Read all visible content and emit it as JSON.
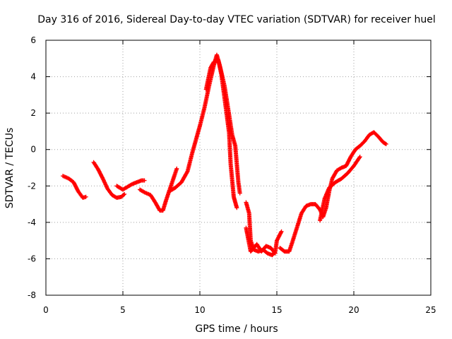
{
  "chart_data": {
    "type": "scatter",
    "title": "Day 316 of 2016, Sidereal Day-to-day VTEC variation (SDTVAR) for receiver huel",
    "xlabel": "GPS time / hours",
    "ylabel": "SDTVAR / TECUs",
    "xlim": [
      0,
      25
    ],
    "ylim": [
      -8,
      6
    ],
    "x_ticks": [
      0,
      5,
      10,
      15,
      20,
      25
    ],
    "x_tick_labels": [
      "0",
      "5",
      "10",
      "15",
      "20",
      "25"
    ],
    "y_ticks": [
      -8,
      -6,
      -4,
      -2,
      0,
      2,
      4,
      6
    ],
    "y_tick_labels": [
      "-8",
      "-6",
      "-4",
      "-2",
      "0",
      "2",
      "4",
      "6"
    ],
    "grid": true,
    "marker": "+",
    "color": "#ff0000",
    "series": [
      {
        "name": "SDTVAR",
        "segments": [
          [
            [
              1.1,
              -1.45
            ],
            [
              1.5,
              -1.6
            ],
            [
              1.8,
              -1.8
            ],
            [
              2.1,
              -2.3
            ],
            [
              2.4,
              -2.65
            ],
            [
              2.6,
              -2.6
            ]
          ],
          [
            [
              3.1,
              -0.7
            ],
            [
              3.4,
              -1.1
            ],
            [
              3.7,
              -1.6
            ],
            [
              4.0,
              -2.15
            ],
            [
              4.3,
              -2.5
            ],
            [
              4.6,
              -2.65
            ],
            [
              4.9,
              -2.6
            ],
            [
              5.1,
              -2.45
            ]
          ],
          [
            [
              4.6,
              -2.0
            ],
            [
              5.0,
              -2.2
            ],
            [
              5.3,
              -2.05
            ],
            [
              5.6,
              -1.9
            ],
            [
              5.9,
              -1.8
            ],
            [
              6.2,
              -1.7
            ],
            [
              6.4,
              -1.7
            ]
          ],
          [
            [
              6.1,
              -2.2
            ],
            [
              6.4,
              -2.35
            ],
            [
              6.8,
              -2.5
            ],
            [
              7.1,
              -2.9
            ],
            [
              7.4,
              -3.35
            ],
            [
              7.6,
              -3.35
            ],
            [
              7.8,
              -2.8
            ],
            [
              8.0,
              -2.3
            ],
            [
              8.2,
              -1.8
            ],
            [
              8.5,
              -1.05
            ]
          ],
          [
            [
              8.0,
              -2.3
            ],
            [
              8.4,
              -2.1
            ],
            [
              8.8,
              -1.8
            ],
            [
              9.2,
              -1.2
            ],
            [
              9.5,
              -0.2
            ],
            [
              9.8,
              0.7
            ],
            [
              10.0,
              1.3
            ],
            [
              10.3,
              2.3
            ],
            [
              10.6,
              3.5
            ],
            [
              10.9,
              4.6
            ],
            [
              11.1,
              5.2
            ],
            [
              11.3,
              4.6
            ],
            [
              11.6,
              3.5
            ],
            [
              11.9,
              1.9
            ],
            [
              12.1,
              0.8
            ],
            [
              12.3,
              0.2
            ],
            [
              12.5,
              -1.8
            ],
            [
              12.6,
              -2.4
            ]
          ],
          [
            [
              10.4,
              3.3
            ],
            [
              10.7,
              4.5
            ],
            [
              10.9,
              4.8
            ],
            [
              11.2,
              4.9
            ],
            [
              11.4,
              4.1
            ],
            [
              11.7,
              2.2
            ],
            [
              11.9,
              0.9
            ],
            [
              12.0,
              -0.8
            ],
            [
              12.2,
              -2.6
            ],
            [
              12.3,
              -2.9
            ],
            [
              12.4,
              -3.2
            ]
          ],
          [
            [
              13.0,
              -2.9
            ],
            [
              13.2,
              -3.5
            ],
            [
              13.3,
              -5.0
            ],
            [
              13.5,
              -5.5
            ],
            [
              13.8,
              -5.6
            ],
            [
              14.1,
              -5.5
            ],
            [
              14.4,
              -5.7
            ],
            [
              14.7,
              -5.8
            ],
            [
              14.9,
              -5.6
            ],
            [
              15.0,
              -5.0
            ],
            [
              15.3,
              -4.5
            ]
          ],
          [
            [
              13.0,
              -4.3
            ],
            [
              13.3,
              -5.6
            ],
            [
              13.7,
              -5.2
            ],
            [
              14.0,
              -5.6
            ],
            [
              14.3,
              -5.3
            ],
            [
              14.6,
              -5.4
            ],
            [
              14.9,
              -5.7
            ]
          ],
          [
            [
              15.2,
              -5.4
            ],
            [
              15.5,
              -5.6
            ],
            [
              15.8,
              -5.6
            ],
            [
              16.0,
              -5.1
            ],
            [
              16.3,
              -4.3
            ],
            [
              16.6,
              -3.5
            ],
            [
              16.9,
              -3.1
            ],
            [
              17.2,
              -3.0
            ],
            [
              17.5,
              -3.0
            ],
            [
              17.8,
              -3.3
            ],
            [
              18.0,
              -3.7
            ],
            [
              18.2,
              -3.2
            ],
            [
              18.4,
              -2.3
            ],
            [
              18.6,
              -1.6
            ],
            [
              18.9,
              -1.15
            ],
            [
              19.2,
              -1.0
            ],
            [
              19.5,
              -0.9
            ],
            [
              19.8,
              -0.4
            ],
            [
              20.1,
              0.0
            ],
            [
              20.4,
              0.2
            ],
            [
              20.7,
              0.45
            ],
            [
              21.0,
              0.8
            ],
            [
              21.3,
              0.95
            ],
            [
              21.6,
              0.7
            ],
            [
              21.9,
              0.4
            ],
            [
              22.1,
              0.3
            ]
          ],
          [
            [
              17.8,
              -3.9
            ],
            [
              18.1,
              -2.7
            ],
            [
              18.4,
              -2.1
            ],
            [
              18.8,
              -1.8
            ],
            [
              19.2,
              -1.6
            ],
            [
              19.6,
              -1.3
            ],
            [
              20.0,
              -0.9
            ],
            [
              20.4,
              -0.4
            ]
          ]
        ]
      }
    ]
  }
}
